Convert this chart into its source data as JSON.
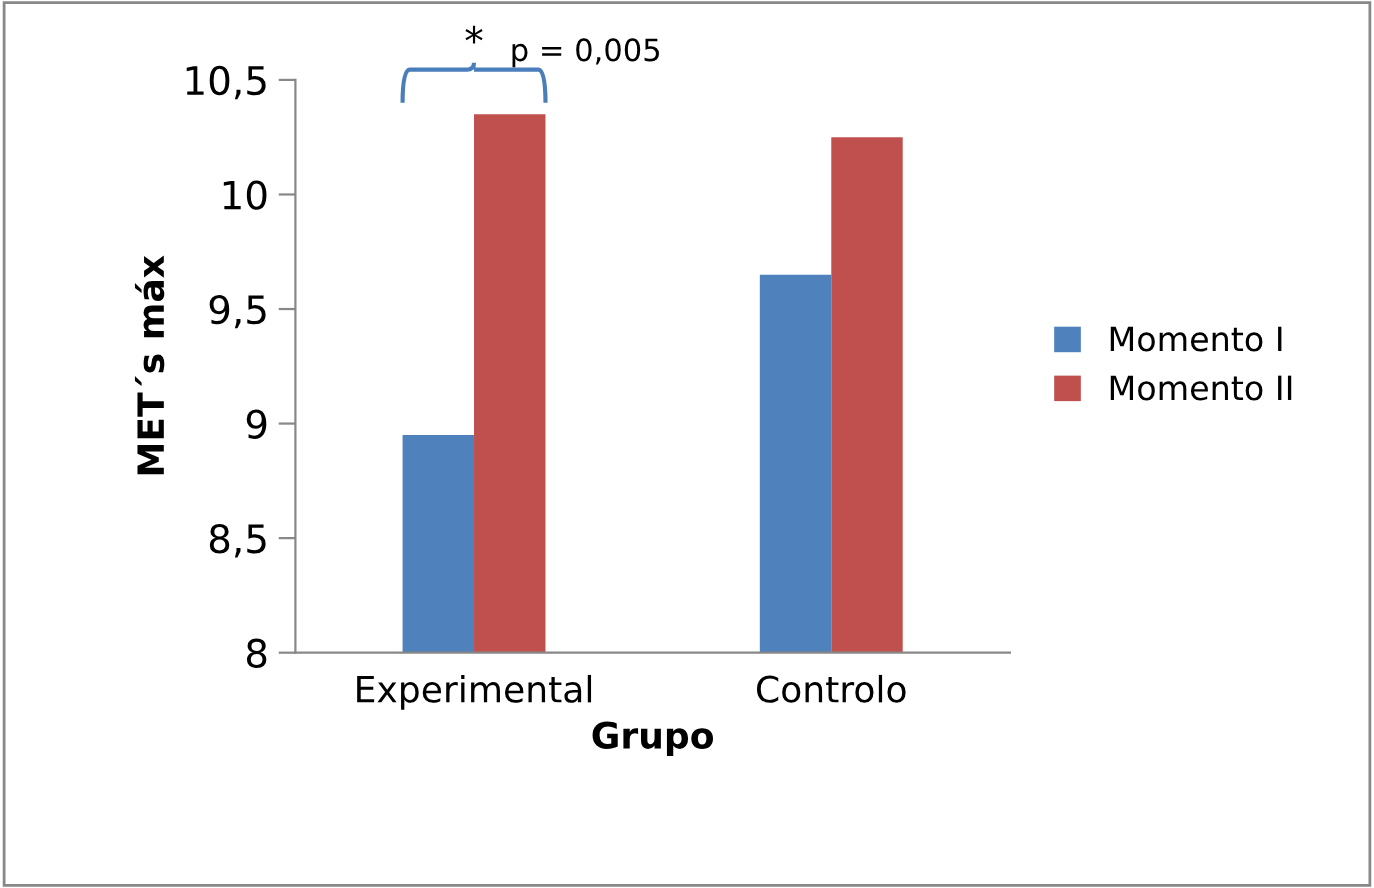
{
  "chart_data": {
    "type": "bar",
    "xlabel": "Grupo",
    "ylabel": "MET´s máx",
    "categories": [
      "Experimental",
      "Controlo"
    ],
    "series": [
      {
        "name": "Momento I",
        "color": "#4f81bd",
        "values": [
          8.95,
          9.65
        ]
      },
      {
        "name": "Momento II",
        "color": "#c0504d",
        "values": [
          10.35,
          10.25
        ]
      }
    ],
    "ylim": [
      8,
      10.5
    ],
    "yticks": [
      {
        "value": 8,
        "label": "8"
      },
      {
        "value": 8.5,
        "label": "8,5"
      },
      {
        "value": 9,
        "label": "9"
      },
      {
        "value": 9.5,
        "label": "9,5"
      },
      {
        "value": 10,
        "label": "10"
      },
      {
        "value": 10.5,
        "label": "10,5"
      }
    ],
    "annotations": [
      "*",
      "p = 0,005"
    ],
    "grid": false,
    "legend": "right"
  }
}
